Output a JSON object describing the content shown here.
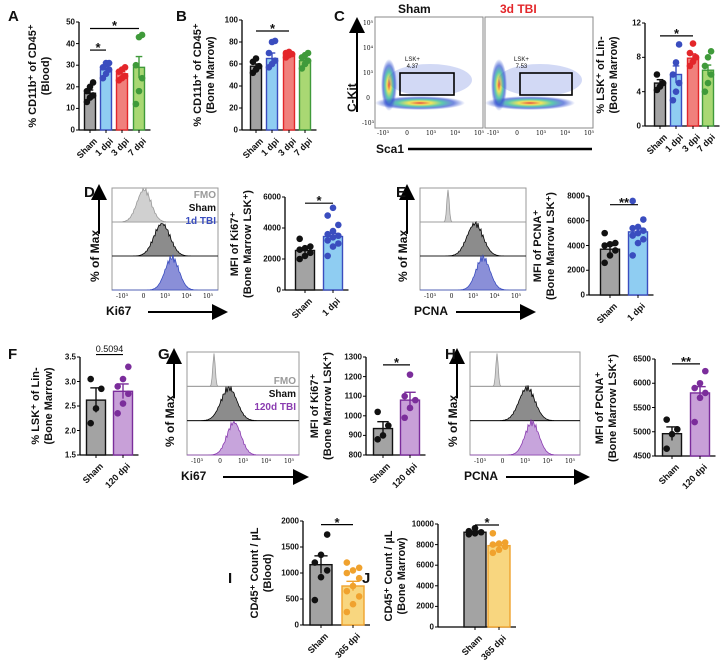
{
  "colors": {
    "sham_fill": "#a3a3a3",
    "sham_point": "#111111",
    "blue_fill": "#8fcdf2",
    "blue_edge": "#3a4dbf",
    "red_fill": "#f0807c",
    "red_edge": "#e3262a",
    "green_fill": "#a9d873",
    "green_edge": "#3f9a3a",
    "purple_fill": "#c8a0d8",
    "purple_edge": "#7b2d9b",
    "orange_fill": "#f8d67f",
    "orange_edge": "#f0a22e",
    "tbi_red_text": "#e3262a",
    "tbi_blue_text": "#3a4dbf",
    "tbi_purple_text": "#8a3cb0",
    "fmo_text": "#9a9a9a"
  },
  "panel_letters": {
    "A": "A",
    "B": "B",
    "C": "C",
    "D": "D",
    "E": "E",
    "F": "F",
    "G": "G",
    "H": "H",
    "I": "I",
    "J": "J"
  },
  "flow_C": {
    "titles": [
      "Sham",
      "3d TBI"
    ],
    "ylabel": "C-Kit",
    "xlabel": "Sca1",
    "gates": [
      {
        "name": "LSK+",
        "value": "4.37"
      },
      {
        "name": "LSK+",
        "value": "7.53"
      }
    ],
    "y_ticks": [
      "10⁵",
      "10⁴",
      "10³",
      "0",
      "-10³"
    ],
    "x_ticks": [
      "-10³",
      "0",
      "10³",
      "10⁴",
      "10⁵"
    ]
  },
  "hist_D": {
    "legend": [
      "FMO",
      "Sham",
      "1d TBI"
    ],
    "ylabel": "% of Max",
    "xlabel": "Ki67",
    "x_ticks": [
      "-10³",
      "0",
      "10³",
      "10⁴",
      "10⁵"
    ]
  },
  "hist_E": {
    "ylabel": "% of Max",
    "xlabel": "PCNA",
    "x_ticks": [
      "-10³",
      "0",
      "10³",
      "10⁴",
      "10⁵"
    ]
  },
  "hist_G": {
    "legend": [
      "FMO",
      "Sham",
      "120d TBI"
    ],
    "ylabel": "% of Max",
    "xlabel": "Ki67",
    "x_ticks": [
      "-10³",
      "0",
      "10³",
      "10⁴",
      "10⁵"
    ]
  },
  "hist_H": {
    "ylabel": "% of Max",
    "xlabel": "PCNA",
    "x_ticks": [
      "-10³",
      "0",
      "10³",
      "10⁴",
      "10⁵"
    ]
  },
  "chart_data": [
    {
      "id": "A",
      "type": "bar",
      "ylabel": [
        "% CD11b⁺ of CD45⁺",
        "(Blood)"
      ],
      "ylim": [
        0,
        50
      ],
      "yticks": [
        "0",
        "10",
        "20",
        "30",
        "40",
        "50"
      ],
      "categories": [
        "Sham",
        "1 dpi",
        "3 dpi",
        "7 dpi"
      ],
      "colors": [
        "sham",
        "blue",
        "red",
        "green"
      ],
      "means": [
        17,
        28,
        26,
        29
      ],
      "sem": [
        1.5,
        1.5,
        1,
        5
      ],
      "points": [
        [
          13,
          15,
          16,
          18,
          20,
          22
        ],
        [
          24,
          26,
          28,
          29,
          31,
          31
        ],
        [
          23,
          24,
          25,
          27,
          28,
          29
        ],
        [
          12,
          18,
          24,
          30,
          43,
          44
        ]
      ],
      "significance": [
        {
          "from": 0,
          "to": 1,
          "y": 37,
          "label": "*"
        },
        {
          "from": 0,
          "to": 3,
          "y": 47,
          "label": "*"
        }
      ]
    },
    {
      "id": "B",
      "type": "bar",
      "ylabel": [
        "% CD11b⁺ of CD45⁺",
        "(Bone Marrow)"
      ],
      "ylim": [
        0,
        100
      ],
      "yticks": [
        "0",
        "20",
        "40",
        "60",
        "80",
        "100"
      ],
      "categories": [
        "Sham",
        "1 dpi",
        "3 dpi",
        "7 dpi"
      ],
      "colors": [
        "sham",
        "blue",
        "red",
        "green"
      ],
      "means": [
        58,
        65,
        69,
        63
      ],
      "sem": [
        2,
        5,
        1,
        2
      ],
      "points": [
        [
          52,
          55,
          58,
          62,
          65
        ],
        [
          57,
          60,
          63,
          70,
          80,
          81
        ],
        [
          66,
          68,
          69,
          70,
          71
        ],
        [
          56,
          60,
          63,
          66,
          68,
          70
        ]
      ],
      "significance": [
        {
          "from": 0,
          "to": 2,
          "y": 90,
          "label": "*"
        }
      ]
    },
    {
      "id": "C",
      "type": "bar",
      "ylabel": [
        "% LSK⁺ of Lin-",
        "(Bone Marrow)"
      ],
      "ylim": [
        0,
        12
      ],
      "yticks": [
        "0",
        "4",
        "8",
        "12"
      ],
      "categories": [
        "Sham",
        "1 dpi",
        "3 dpi",
        "7 dpi"
      ],
      "colors": [
        "sham",
        "blue",
        "red",
        "green"
      ],
      "means": [
        5,
        6,
        7.9,
        6.5
      ],
      "sem": [
        0.4,
        1,
        0.5,
        0.6
      ],
      "points": [
        [
          4.2,
          4.6,
          5,
          6
        ],
        [
          3,
          4,
          5,
          6,
          7.4,
          9.5
        ],
        [
          7,
          7.5,
          8,
          8.5,
          9.6
        ],
        [
          4,
          5,
          6,
          7,
          8,
          8.7
        ]
      ],
      "significance": [
        {
          "from": 0,
          "to": 2,
          "y": 10.5,
          "label": "*"
        }
      ]
    },
    {
      "id": "D",
      "type": "bar",
      "ylabel": [
        "MFI of Ki67⁺",
        "(Bone Marrow LSK⁺)"
      ],
      "ylim": [
        0,
        6000
      ],
      "yticks": [
        "0",
        "2000",
        "4000",
        "6000"
      ],
      "categories": [
        "Sham",
        "1 dpi"
      ],
      "colors": [
        "sham",
        "blue"
      ],
      "means": [
        2550,
        3450
      ],
      "sem": [
        150,
        200
      ],
      "points": [
        [
          2000,
          2200,
          2400,
          2600,
          2700,
          2800,
          3300
        ],
        [
          2200,
          2800,
          3000,
          3200,
          3400,
          3500,
          3600,
          3800,
          4200,
          4800,
          5300
        ]
      ],
      "significance": [
        {
          "from": 0,
          "to": 1,
          "y": 5600,
          "label": "*"
        }
      ]
    },
    {
      "id": "E",
      "type": "bar",
      "ylabel": [
        "MFI of PCNA⁺",
        "(Bone Marrow LSK⁺)"
      ],
      "ylim": [
        0,
        8000
      ],
      "yticks": [
        "0",
        "2000",
        "4000",
        "6000",
        "8000"
      ],
      "categories": [
        "Sham",
        "1 dpi"
      ],
      "colors": [
        "sham",
        "blue"
      ],
      "means": [
        3700,
        5100
      ],
      "sem": [
        300,
        300
      ],
      "points": [
        [
          2600,
          3200,
          3600,
          4000,
          4100,
          4200,
          5000
        ],
        [
          3200,
          4200,
          4500,
          4800,
          5000,
          5200,
          5400,
          5500,
          6100,
          7600
        ]
      ],
      "significance": [
        {
          "from": 0,
          "to": 1,
          "y": 7300,
          "label": "**"
        }
      ]
    },
    {
      "id": "F",
      "type": "bar",
      "ylabel": [
        "% LSK⁺ of Lin-",
        "(Bone Marrow)"
      ],
      "ylim": [
        1.5,
        3.5
      ],
      "yticks": [
        "1.5",
        "2.0",
        "2.5",
        "3.0",
        "3.5"
      ],
      "categories": [
        "Sham",
        "120 dpi"
      ],
      "colors": [
        "sham",
        "purple"
      ],
      "means": [
        2.62,
        2.8
      ],
      "sem": [
        0.25,
        0.15
      ],
      "points": [
        [
          2.15,
          2.45,
          2.85,
          3.05
        ],
        [
          2.35,
          2.55,
          2.75,
          2.9,
          3.05,
          3.3
        ]
      ],
      "significance": [
        {
          "from": 0,
          "to": 1,
          "y": 3.55,
          "label": "0.5094"
        }
      ]
    },
    {
      "id": "G",
      "type": "bar",
      "ylabel": [
        "MFI of Ki67⁺",
        "(Bone Marrow LSK⁺)"
      ],
      "ylim": [
        800,
        1300
      ],
      "yticks": [
        "800",
        "900",
        "1000",
        "1100",
        "1200",
        "1300"
      ],
      "categories": [
        "Sham",
        "120 dpi"
      ],
      "colors": [
        "sham",
        "purple"
      ],
      "means": [
        935,
        1080
      ],
      "sem": [
        35,
        40
      ],
      "points": [
        [
          880,
          900,
          950,
          1020
        ],
        [
          990,
          1040,
          1080,
          1100,
          1210
        ]
      ],
      "significance": [
        {
          "from": 0,
          "to": 1,
          "y": 1260,
          "label": "*"
        }
      ]
    },
    {
      "id": "H",
      "type": "bar",
      "ylabel": [
        "MFI of PCNA⁺",
        "(Bone Marrow LSK⁺)"
      ],
      "ylim": [
        4500,
        6500
      ],
      "yticks": [
        "4500",
        "5000",
        "5500",
        "6000",
        "6500"
      ],
      "categories": [
        "Sham",
        "120 dpi"
      ],
      "colors": [
        "sham",
        "purple"
      ],
      "means": [
        4960,
        5800
      ],
      "sem": [
        140,
        130
      ],
      "points": [
        [
          4650,
          4950,
          5050,
          5250
        ],
        [
          5200,
          5700,
          5800,
          5900,
          6000,
          6250
        ]
      ],
      "significance": [
        {
          "from": 0,
          "to": 1,
          "y": 6400,
          "label": "**"
        }
      ]
    },
    {
      "id": "I",
      "type": "bar",
      "ylabel": [
        "CD45⁺ Count / µL",
        "(Blood)"
      ],
      "ylim": [
        0,
        2000
      ],
      "yticks": [
        "0",
        "500",
        "1000",
        "1500",
        "2000"
      ],
      "categories": [
        "Sham",
        "365 dpi"
      ],
      "colors": [
        "sham",
        "orange"
      ],
      "means": [
        1160,
        750
      ],
      "sem": [
        170,
        90
      ],
      "points": [
        [
          480,
          920,
          1050,
          1200,
          1350,
          1740
        ],
        [
          250,
          400,
          550,
          650,
          750,
          900,
          1000,
          1050,
          1100,
          1200
        ]
      ],
      "significance": [
        {
          "from": 0,
          "to": 1,
          "y": 1930,
          "label": "*"
        }
      ]
    },
    {
      "id": "J",
      "type": "bar",
      "ylabel": [
        "CD45⁺ Count / µL",
        "(Bone Marrow)"
      ],
      "ylim": [
        0,
        10000
      ],
      "yticks": [
        "0",
        "2000",
        "4000",
        "6000",
        "8000",
        "10000"
      ],
      "categories": [
        "Sham",
        "365 dpi"
      ],
      "colors": [
        "sham",
        "orange"
      ],
      "means": [
        9200,
        7900
      ],
      "sem": [
        120,
        200
      ],
      "points": [
        [
          9000,
          9100,
          9200,
          9300,
          9600
        ],
        [
          7200,
          7500,
          7800,
          8000,
          8100,
          8200,
          9100
        ]
      ],
      "significance": [
        {
          "from": 0,
          "to": 1,
          "y": 9900,
          "label": "*"
        }
      ]
    }
  ]
}
